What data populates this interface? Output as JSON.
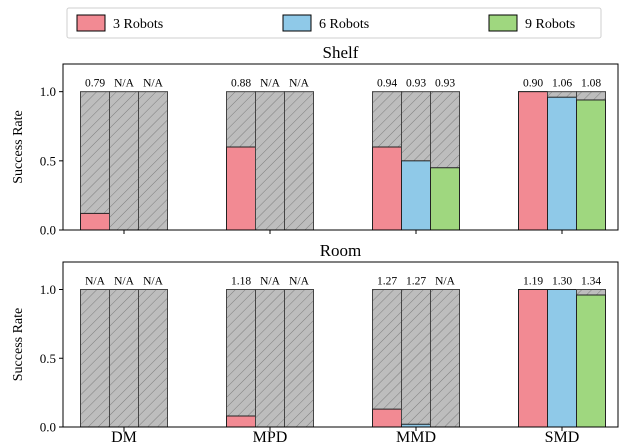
{
  "chart_data": {
    "type": "bar",
    "legend_placement": "top-center",
    "legend": [
      {
        "name": "3 Robots",
        "color": "#f28a93"
      },
      {
        "name": "6 Robots",
        "color": "#8fc9e8"
      },
      {
        "name": "9 Robots",
        "color": "#9fd77f"
      }
    ],
    "hatch_color": "#bdbdbd",
    "categories": [
      "DM",
      "MPD",
      "MMD",
      "SMD"
    ],
    "ylabel": "Success Rate",
    "ylim": [
      0,
      1.2
    ],
    "yticks": [
      "0.0",
      "0.5",
      "1.0"
    ],
    "panels": [
      {
        "title": "Shelf",
        "series": [
          {
            "name": "3 Robots",
            "values": [
              0.12,
              0.6,
              0.6,
              1.0
            ]
          },
          {
            "name": "6 Robots",
            "values": [
              0.0,
              0.0,
              0.5,
              0.96
            ]
          },
          {
            "name": "9 Robots",
            "values": [
              0.0,
              0.0,
              0.45,
              0.94
            ]
          }
        ],
        "bar_labels": [
          [
            "0.79",
            "N/A",
            "N/A"
          ],
          [
            "0.88",
            "N/A",
            "N/A"
          ],
          [
            "0.94",
            "0.93",
            "0.93"
          ],
          [
            "0.90",
            "1.06",
            "1.08"
          ]
        ]
      },
      {
        "title": "Room",
        "series": [
          {
            "name": "3 Robots",
            "values": [
              0.0,
              0.08,
              0.13,
              1.0
            ]
          },
          {
            "name": "6 Robots",
            "values": [
              0.0,
              0.0,
              0.02,
              1.0
            ]
          },
          {
            "name": "9 Robots",
            "values": [
              0.0,
              0.0,
              0.0,
              0.96
            ]
          }
        ],
        "bar_labels": [
          [
            "N/A",
            "N/A",
            "N/A"
          ],
          [
            "1.18",
            "N/A",
            "N/A"
          ],
          [
            "1.27",
            "1.27",
            "N/A"
          ],
          [
            "1.19",
            "1.30",
            "1.34"
          ]
        ]
      }
    ]
  }
}
